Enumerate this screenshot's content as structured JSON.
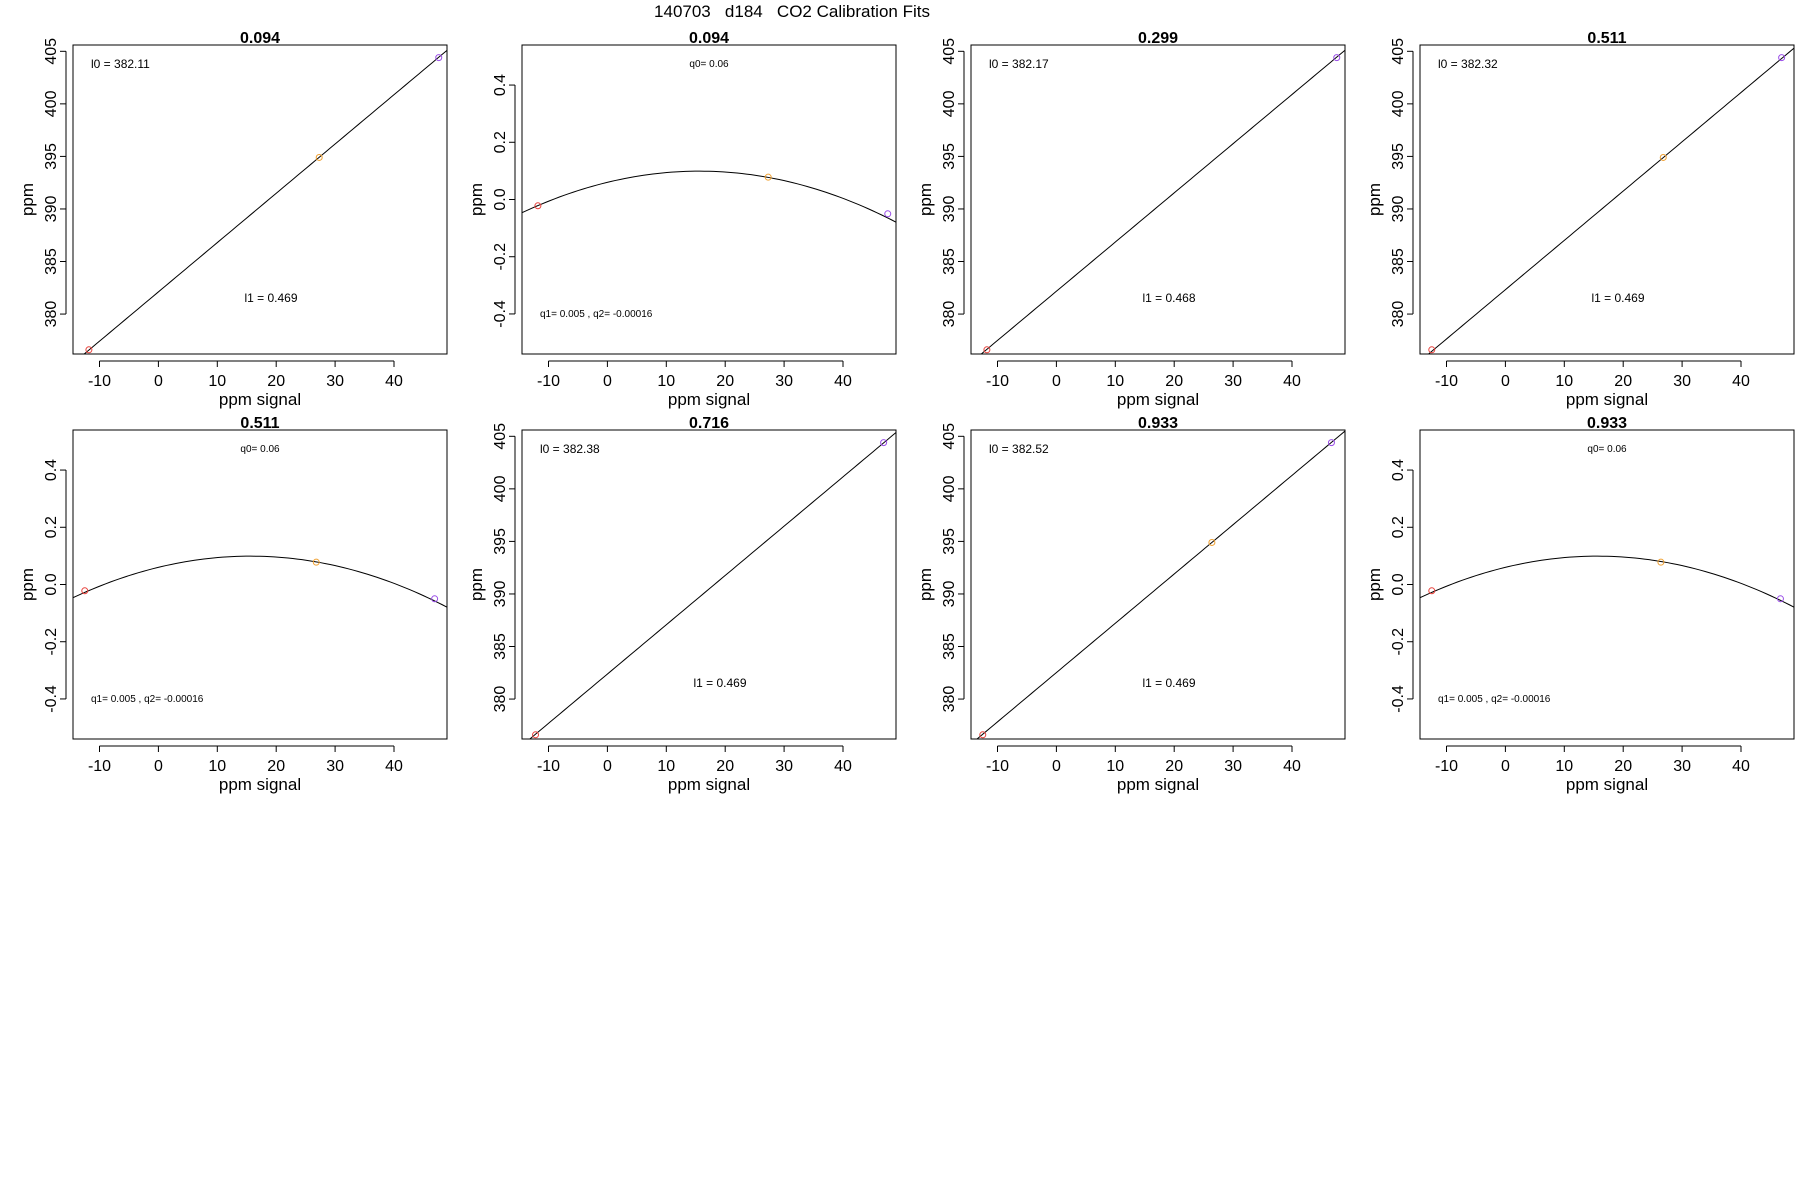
{
  "figure": {
    "title": "140703   d184   CO2 Calibration Fits",
    "colors": {
      "low": "#e8423c",
      "mid": "#f0a030",
      "high": "#9b4fe8",
      "line": "#000000"
    }
  },
  "chart_data": [
    {
      "type": "line",
      "title": "0.094",
      "fit": "linear",
      "xlabel": "ppm signal",
      "ylabel": "ppm",
      "xlim": [
        -14.5,
        49
      ],
      "ylim": [
        376.2,
        405.6
      ],
      "xticks": [
        -10,
        0,
        10,
        20,
        30,
        40
      ],
      "yticks": [
        380,
        385,
        390,
        395,
        400,
        405
      ],
      "intercept": 382.11,
      "slope": 0.469,
      "points": [
        {
          "x": -11.8,
          "y": 376.6
        },
        {
          "x": 27.3,
          "y": 394.9
        },
        {
          "x": 47.6,
          "y": 404.4
        }
      ],
      "annotations": {
        "a": "l0 =  382.11",
        "b": "l1 =  0.469"
      }
    },
    {
      "type": "line",
      "title": "0.094",
      "fit": "quadratic",
      "xlabel": "ppm signal",
      "ylabel": "ppm",
      "xlim": [
        -14.5,
        49
      ],
      "ylim": [
        -0.54,
        0.54
      ],
      "xticks": [
        -10,
        0,
        10,
        20,
        30,
        40
      ],
      "yticks": [
        -0.4,
        -0.2,
        0.0,
        0.2,
        0.4
      ],
      "q0": 0.06,
      "q1": 0.005,
      "q2": -0.00016,
      "points": [
        {
          "x": -11.8,
          "y": -0.022
        },
        {
          "x": 27.3,
          "y": 0.078
        },
        {
          "x": 47.6,
          "y": -0.05
        }
      ],
      "annotations": {
        "a": "q0= 0.06",
        "b": "q1= 0.005 , q2= -0.00016"
      }
    },
    {
      "type": "line",
      "title": "0.299",
      "fit": "linear",
      "xlabel": "ppm signal",
      "ylabel": "ppm",
      "xlim": [
        -14.5,
        49
      ],
      "ylim": [
        376.2,
        405.6
      ],
      "xticks": [
        -10,
        0,
        10,
        20,
        30,
        40
      ],
      "yticks": [
        380,
        385,
        390,
        395,
        400,
        405
      ],
      "intercept": 382.17,
      "slope": 0.468,
      "points": [
        {
          "x": -11.8,
          "y": 376.6
        },
        {
          "x": 47.6,
          "y": 404.4
        }
      ],
      "annotations": {
        "a": "l0 =  382.17",
        "b": "l1 =  0.468"
      }
    },
    {
      "type": "line",
      "title": "0.511",
      "fit": "linear",
      "xlabel": "ppm signal",
      "ylabel": "ppm",
      "xlim": [
        -14.5,
        49
      ],
      "ylim": [
        376.2,
        405.6
      ],
      "xticks": [
        -10,
        0,
        10,
        20,
        30,
        40
      ],
      "yticks": [
        380,
        385,
        390,
        395,
        400,
        405
      ],
      "intercept": 382.32,
      "slope": 0.469,
      "points": [
        {
          "x": -12.5,
          "y": 376.6
        },
        {
          "x": 26.8,
          "y": 394.9
        },
        {
          "x": 46.9,
          "y": 404.4
        }
      ],
      "annotations": {
        "a": "l0 =  382.32",
        "b": "l1 =  0.469"
      }
    },
    {
      "type": "line",
      "title": "0.511",
      "fit": "quadratic",
      "xlabel": "ppm signal",
      "ylabel": "ppm",
      "xlim": [
        -14.5,
        49
      ],
      "ylim": [
        -0.54,
        0.54
      ],
      "xticks": [
        -10,
        0,
        10,
        20,
        30,
        40
      ],
      "yticks": [
        -0.4,
        -0.2,
        0.0,
        0.2,
        0.4
      ],
      "q0": 0.06,
      "q1": 0.005,
      "q2": -0.00016,
      "points": [
        {
          "x": -12.5,
          "y": -0.022
        },
        {
          "x": 26.8,
          "y": 0.078
        },
        {
          "x": 46.9,
          "y": -0.05
        }
      ],
      "annotations": {
        "a": "q0= 0.06",
        "b": "q1= 0.005 , q2= -0.00016"
      }
    },
    {
      "type": "line",
      "title": "0.716",
      "fit": "linear",
      "xlabel": "ppm signal",
      "ylabel": "ppm",
      "xlim": [
        -14.5,
        49
      ],
      "ylim": [
        376.2,
        405.6
      ],
      "xticks": [
        -10,
        0,
        10,
        20,
        30,
        40
      ],
      "yticks": [
        380,
        385,
        390,
        395,
        400,
        405
      ],
      "intercept": 382.38,
      "slope": 0.469,
      "points": [
        {
          "x": -12.2,
          "y": 376.6
        },
        {
          "x": 46.9,
          "y": 404.4
        }
      ],
      "annotations": {
        "a": "l0 =  382.38",
        "b": "l1 =  0.469"
      }
    },
    {
      "type": "line",
      "title": "0.933",
      "fit": "linear",
      "xlabel": "ppm signal",
      "ylabel": "ppm",
      "xlim": [
        -14.5,
        49
      ],
      "ylim": [
        376.2,
        405.6
      ],
      "xticks": [
        -10,
        0,
        10,
        20,
        30,
        40
      ],
      "yticks": [
        380,
        385,
        390,
        395,
        400,
        405
      ],
      "intercept": 382.52,
      "slope": 0.469,
      "points": [
        {
          "x": -12.5,
          "y": 376.6
        },
        {
          "x": 26.4,
          "y": 394.9
        },
        {
          "x": 46.7,
          "y": 404.4
        }
      ],
      "annotations": {
        "a": "l0 =  382.52",
        "b": "l1 =  0.469"
      }
    },
    {
      "type": "line",
      "title": "0.933",
      "fit": "quadratic",
      "xlabel": "ppm signal",
      "ylabel": "ppm",
      "xlim": [
        -14.5,
        49
      ],
      "ylim": [
        -0.54,
        0.54
      ],
      "xticks": [
        -10,
        0,
        10,
        20,
        30,
        40
      ],
      "yticks": [
        -0.4,
        -0.2,
        0.0,
        0.2,
        0.4
      ],
      "q0": 0.06,
      "q1": 0.005,
      "q2": -0.00016,
      "points": [
        {
          "x": -12.5,
          "y": -0.022
        },
        {
          "x": 26.4,
          "y": 0.078
        },
        {
          "x": 46.7,
          "y": -0.05
        }
      ],
      "annotations": {
        "a": "q0= 0.06",
        "b": "q1= 0.005 , q2= -0.00016"
      }
    }
  ]
}
